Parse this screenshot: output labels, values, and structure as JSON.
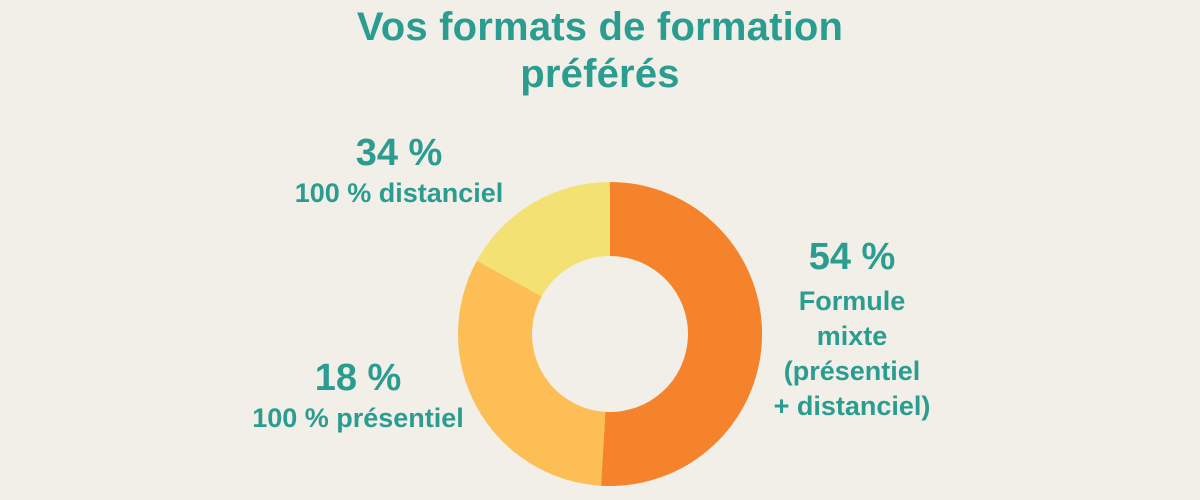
{
  "background_color": "#F2EFE8",
  "text_color": "#2B9D90",
  "title": {
    "text": "Vos formats de formation préférés",
    "line1": "Vos formats de formation",
    "line2": "préférés"
  },
  "chart_data": {
    "type": "pie",
    "subtype": "donut",
    "title": "Vos formats de formation préférés",
    "start_angle_deg": 0,
    "direction": "clockwise",
    "inner_radius_ratio": 0.513,
    "values_total": 106,
    "legend_position": "none",
    "segments": [
      {
        "id": "formule-mixte",
        "label": "Formule mixte (présentiel + distanciel)",
        "value": 54,
        "pct_text": "54 %",
        "color": "#F5832B"
      },
      {
        "id": "distanciel",
        "label": "100 % distanciel",
        "value": 34,
        "pct_text": "34 %",
        "color": "#FDBE55"
      },
      {
        "id": "presentiel",
        "label": "100 % présentiel",
        "value": 18,
        "pct_text": "18 %",
        "color": "#F4E173"
      }
    ]
  },
  "annotations": [
    {
      "position": "top-left",
      "segment_id": "distanciel",
      "pct": "34 %",
      "text": "100 % distanciel"
    },
    {
      "position": "right",
      "segment_id": "formule-mixte",
      "pct": "54 %",
      "text": "Formule\nmixte\n(présentiel\n+ distanciel)"
    },
    {
      "position": "bottom-left",
      "segment_id": "presentiel",
      "pct": "18 %",
      "text": "100 % présentiel"
    }
  ]
}
